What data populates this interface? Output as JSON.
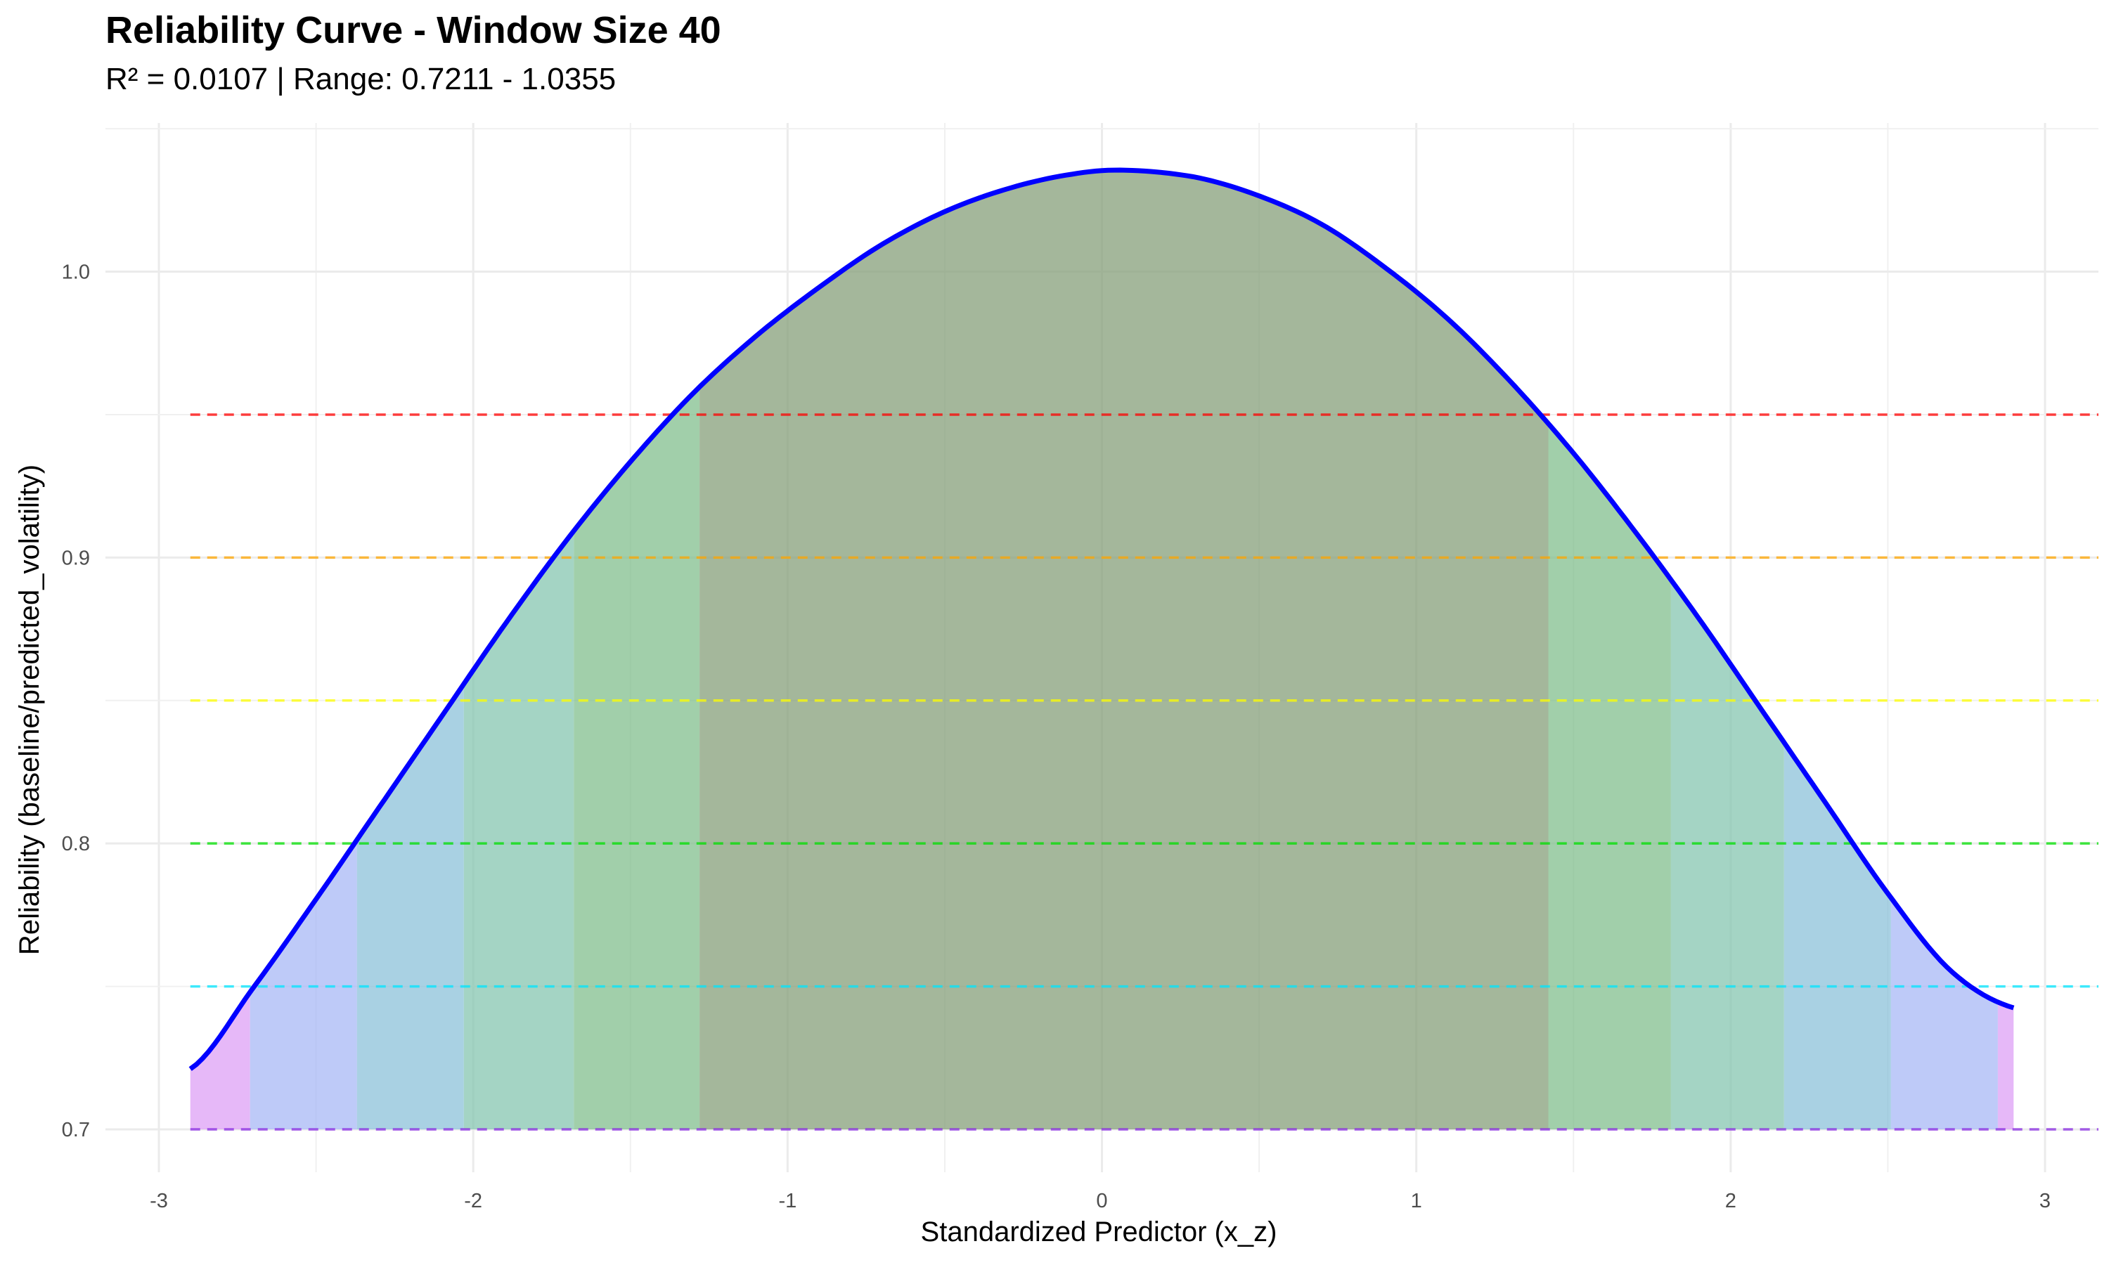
{
  "chart_data": {
    "type": "area",
    "title": "Reliability Curve - Window Size 40",
    "subtitle": "R² = 0.0107 | Range: 0.7211 - 1.0355",
    "xlabel": "Standardized Predictor (x_z)",
    "ylabel": "Reliability (baseline/predicted_volatility)",
    "xlim": [
      -3.17,
      3.17
    ],
    "ylim": [
      0.685,
      1.052
    ],
    "x_ticks": [
      -3,
      -2,
      -1,
      0,
      1,
      2,
      3
    ],
    "x_tick_labels": [
      "-3",
      "-2",
      "-1",
      "0",
      "1",
      "2",
      "3"
    ],
    "y_ticks": [
      0.7,
      0.8,
      0.9,
      1.0
    ],
    "y_tick_labels": [
      "0.7",
      "0.8",
      "0.9",
      "1.0"
    ],
    "grid": true,
    "curve": {
      "color": "#0000ff",
      "x": [
        -2.9,
        -2.7,
        -2.5,
        -2.3,
        -2.1,
        -1.9,
        -1.7,
        -1.5,
        -1.3,
        -1.1,
        -0.9,
        -0.7,
        -0.5,
        -0.3,
        -0.1,
        0.07,
        0.3,
        0.5,
        0.7,
        0.9,
        1.1,
        1.3,
        1.5,
        1.7,
        1.9,
        2.1,
        2.3,
        2.5,
        2.7,
        2.9
      ],
      "y": [
        0.7211,
        0.7495,
        0.7805,
        0.8125,
        0.8445,
        0.8765,
        0.9065,
        0.9335,
        0.9575,
        0.9775,
        0.9945,
        1.0095,
        1.021,
        1.029,
        1.034,
        1.0355,
        1.033,
        1.0265,
        1.0165,
        1.0015,
        0.9835,
        0.9615,
        0.9365,
        0.9085,
        0.8785,
        0.8465,
        0.8145,
        0.7825,
        0.7555,
        0.7425
      ]
    },
    "zones": [
      {
        "x_start": -2.9,
        "x_end": -2.71,
        "color": "#dda0f5"
      },
      {
        "x_start": -2.71,
        "x_end": -2.37,
        "color": "#a8b8f5"
      },
      {
        "x_start": -2.37,
        "x_end": -2.03,
        "color": "#8cc2da"
      },
      {
        "x_start": -2.03,
        "x_end": -1.68,
        "color": "#86c6b0"
      },
      {
        "x_start": -1.68,
        "x_end": -1.28,
        "color": "#82bf8e"
      },
      {
        "x_start": -1.28,
        "x_end": 1.42,
        "color": "#859f79"
      },
      {
        "x_start": 1.42,
        "x_end": 1.81,
        "color": "#82bf8e"
      },
      {
        "x_start": 1.81,
        "x_end": 2.17,
        "color": "#86c6b0"
      },
      {
        "x_start": 2.17,
        "x_end": 2.51,
        "color": "#8cc2da"
      },
      {
        "x_start": 2.51,
        "x_end": 2.85,
        "color": "#a8b8f5"
      },
      {
        "x_start": 2.85,
        "x_end": 2.9,
        "color": "#dda0f5"
      }
    ],
    "threshold_lines": [
      {
        "y": 0.95,
        "color": "#ff0000"
      },
      {
        "y": 0.9,
        "color": "#ffa500"
      },
      {
        "y": 0.85,
        "color": "#ffff00"
      },
      {
        "y": 0.8,
        "color": "#00e000"
      },
      {
        "y": 0.75,
        "color": "#00e5ff"
      },
      {
        "y": 0.7,
        "color": "#8a2be2"
      }
    ]
  }
}
